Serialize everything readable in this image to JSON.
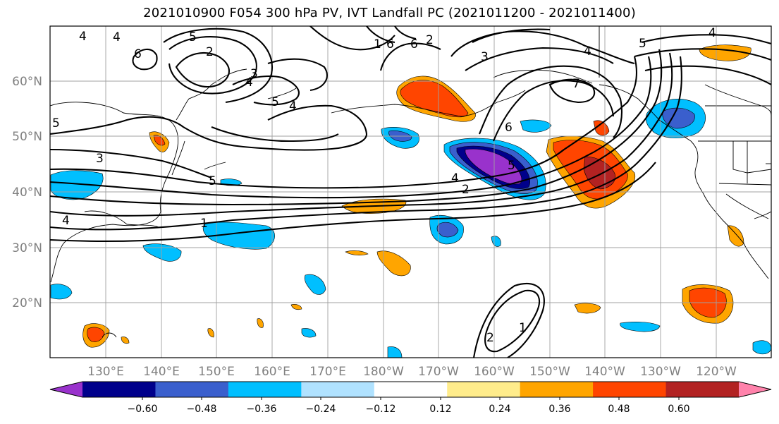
{
  "title": "2021010900 F054 300 hPa PV, IVT Landfall PC (2021011200 - 2021011400)",
  "map": {
    "lat_ticks": [
      "60°N",
      "50°N",
      "40°N",
      "30°N",
      "20°N"
    ],
    "lon_ticks": [
      "130°E",
      "140°E",
      "150°E",
      "160°E",
      "170°E",
      "180°W",
      "170°W",
      "160°W",
      "150°W",
      "140°W",
      "130°W",
      "120°W"
    ],
    "extent": {
      "lon_min": 120,
      "lon_max": 250,
      "lat_min": 10,
      "lat_max": 70
    },
    "pv_contour_levels": [
      1,
      2,
      3,
      4,
      5,
      6,
      7
    ],
    "contour_labels": [
      "4",
      "4",
      "6",
      "2",
      "3",
      "4",
      "5",
      "4",
      "5",
      "1",
      "6",
      "6",
      "2",
      "4",
      "5",
      "3",
      "4",
      "5",
      "5",
      "3",
      "5",
      "4",
      "2",
      "6",
      "7",
      "1",
      "4",
      "2",
      "1"
    ]
  },
  "colorbar": {
    "ticks": [
      "−0.60",
      "−0.48",
      "−0.36",
      "−0.24",
      "−0.12",
      "0.12",
      "0.24",
      "0.36",
      "0.48",
      "0.60"
    ],
    "colors": [
      "#9932cc",
      "#00008b",
      "#3a5fcd",
      "#00bfff",
      "#b0e2ff",
      "#ffffff",
      "#ffec8b",
      "#ffa500",
      "#ff4500",
      "#b22222",
      "#ff82ab"
    ]
  }
}
